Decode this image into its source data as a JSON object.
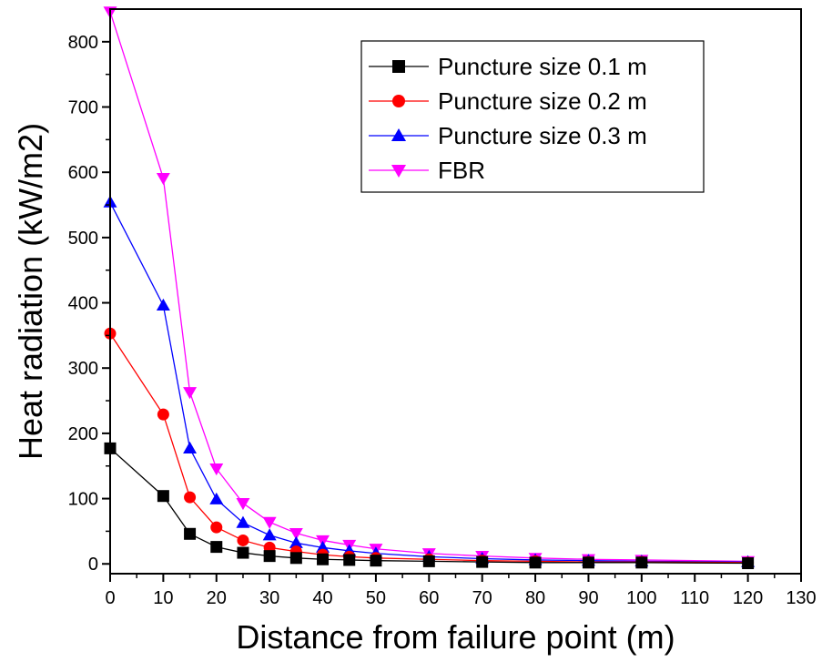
{
  "chart_data": {
    "type": "line",
    "xlabel": "Distance from failure point (m)",
    "ylabel": "Heat radiation (kW/m2)",
    "xlim": [
      0,
      130
    ],
    "ylim": [
      -15,
      850
    ],
    "x_ticks": [
      0,
      10,
      20,
      30,
      40,
      50,
      60,
      70,
      80,
      90,
      100,
      110,
      120,
      130
    ],
    "y_ticks": [
      0,
      100,
      200,
      300,
      400,
      500,
      600,
      700,
      800
    ],
    "grid": false,
    "legend_position": "top-right",
    "x": [
      0,
      10,
      15,
      20,
      25,
      30,
      35,
      40,
      45,
      50,
      60,
      70,
      80,
      90,
      100,
      120
    ],
    "series": [
      {
        "name": "Puncture size 0.1 m",
        "color": "#000000",
        "marker": "square",
        "values": [
          177,
          104,
          46,
          26,
          17,
          12,
          9,
          7,
          6,
          5,
          4,
          3,
          2,
          2,
          2,
          1
        ]
      },
      {
        "name": "Puncture size 0.2 m",
        "color": "#ff0000",
        "marker": "circle",
        "values": [
          353,
          229,
          102,
          56,
          36,
          25,
          19,
          14,
          11,
          9,
          7,
          5,
          4,
          3,
          3,
          2
        ]
      },
      {
        "name": "Puncture size 0.3 m",
        "color": "#0000ff",
        "marker": "triangle-up",
        "values": [
          554,
          396,
          177,
          99,
          63,
          44,
          32,
          25,
          20,
          16,
          11,
          8,
          6,
          5,
          4,
          3
        ]
      },
      {
        "name": "FBR",
        "color": "#ff00ff",
        "marker": "triangle-down",
        "values": [
          846,
          591,
          263,
          146,
          93,
          64,
          47,
          36,
          29,
          23,
          16,
          12,
          9,
          7,
          6,
          4
        ]
      }
    ]
  }
}
